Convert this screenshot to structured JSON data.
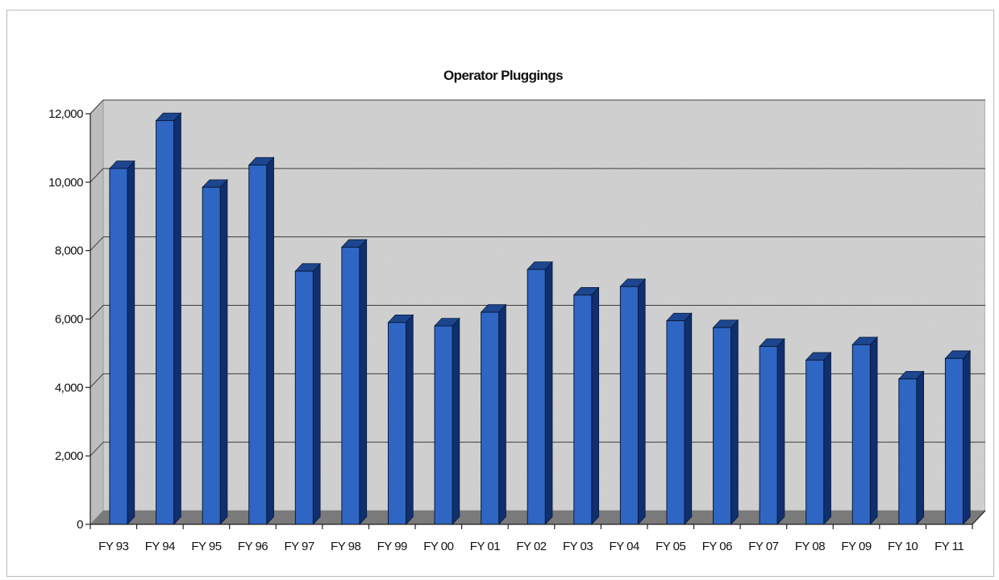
{
  "chart_data": {
    "type": "bar",
    "title": "Operator Pluggings",
    "xlabel": "",
    "ylabel": "",
    "categories": [
      "FY 93",
      "FY 94",
      "FY 95",
      "FY 96",
      "FY 97",
      "FY 98",
      "FY 99",
      "FY 00",
      "FY 01",
      "FY 02",
      "FY 03",
      "FY 04",
      "FY 05",
      "FY 06",
      "FY 07",
      "FY 08",
      "FY 09",
      "FY 10",
      "FY 11"
    ],
    "values": [
      10400,
      11800,
      9850,
      10500,
      7400,
      8100,
      5900,
      5800,
      6200,
      7450,
      6700,
      6950,
      5950,
      5750,
      5200,
      4800,
      5250,
      4250,
      4850
    ],
    "yticks": [
      "0",
      "2,000",
      "4,000",
      "6,000",
      "8,000",
      "10,000",
      "12,000"
    ],
    "ylim": [
      0,
      12000
    ],
    "grid": true,
    "legend": "none",
    "colors": {
      "bar_front": "#2f66c4",
      "bar_side": "#0f2f6e",
      "bar_top": "#1d468f",
      "wall": "#d3d3d3",
      "floor": "#7a7a7a"
    }
  }
}
